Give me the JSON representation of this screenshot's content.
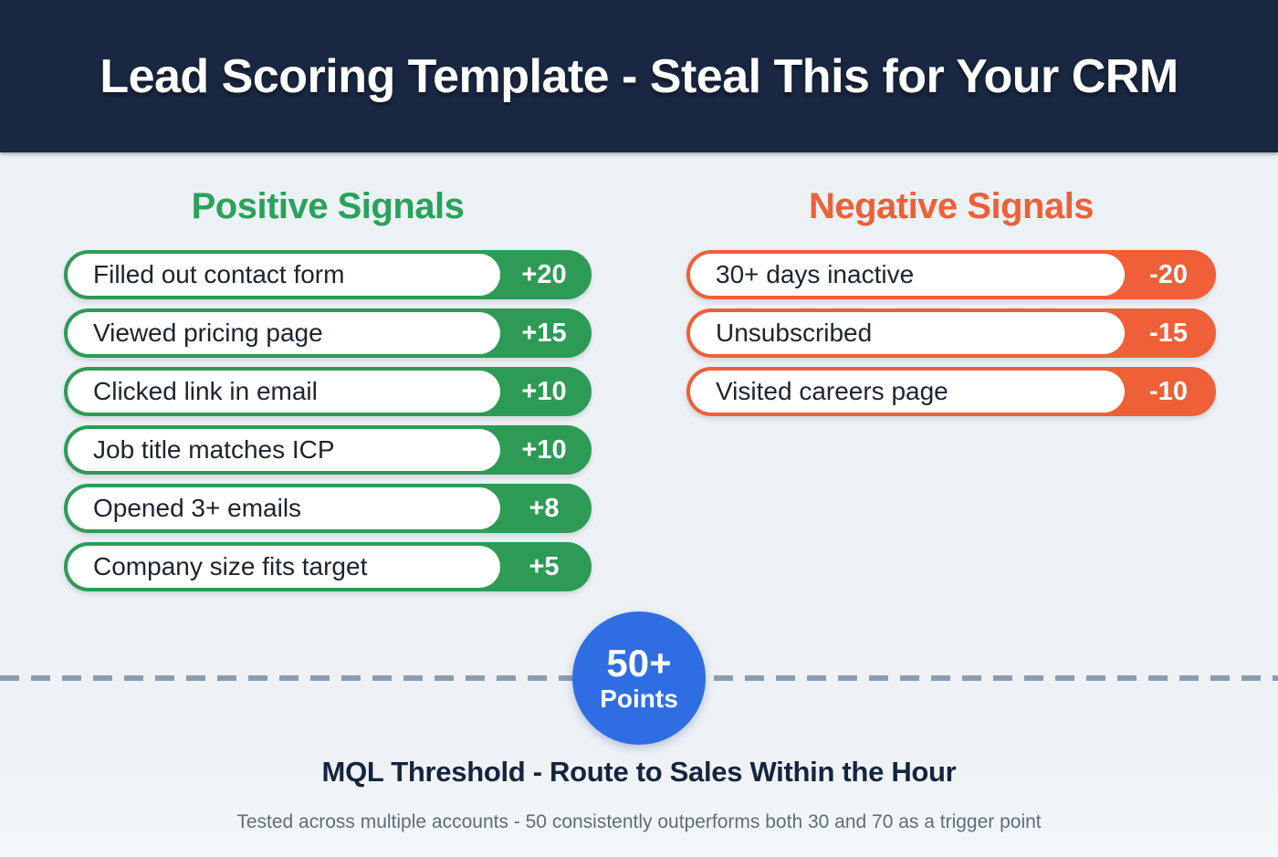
{
  "header": {
    "title": "Lead Scoring Template - Steal This for Your CRM"
  },
  "positive": {
    "heading": "Positive Signals",
    "items": [
      {
        "label": "Filled out contact form",
        "score": "+20"
      },
      {
        "label": "Viewed pricing page",
        "score": "+15"
      },
      {
        "label": "Clicked link in email",
        "score": "+10"
      },
      {
        "label": "Job title matches ICP",
        "score": "+10"
      },
      {
        "label": "Opened 3+ emails",
        "score": "+8"
      },
      {
        "label": "Company size fits target",
        "score": "+5"
      }
    ]
  },
  "negative": {
    "heading": "Negative Signals",
    "items": [
      {
        "label": "30+ days inactive",
        "score": "-20"
      },
      {
        "label": "Unsubscribed",
        "score": "-15"
      },
      {
        "label": "Visited careers page",
        "score": "-10"
      }
    ]
  },
  "threshold": {
    "badge_line1": "50+",
    "badge_line2": "Points",
    "heading": "MQL Threshold - Route to Sales Within the Hour",
    "note": "Tested across multiple accounts - 50 consistently outperforms both 30 and 70 as a trigger point"
  },
  "colors": {
    "header_navy": "#1a2742",
    "positive_green": "#2d9b55",
    "heading_green": "#27a35a",
    "negative_orange": "#ef5f38",
    "badge_blue": "#2e6ee2",
    "background": "#eef2f6",
    "dash_gray": "#8b9cb1"
  }
}
